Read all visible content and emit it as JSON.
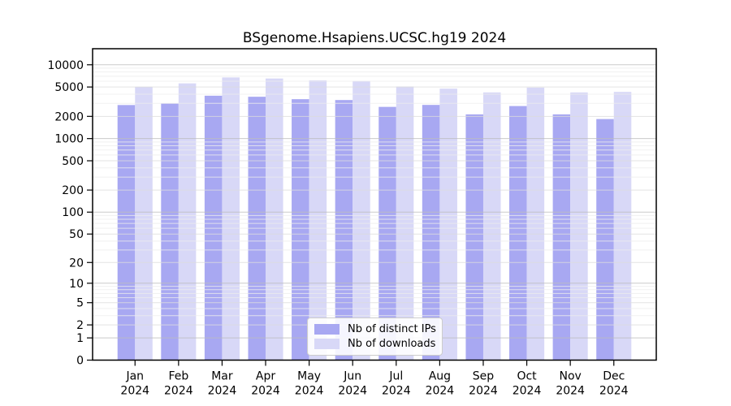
{
  "chart_data": {
    "type": "bar",
    "title": "BSgenome.Hsapiens.UCSC.hg19 2024",
    "categories": [
      "Jan",
      "Feb",
      "Mar",
      "Apr",
      "May",
      "Jun",
      "Jul",
      "Aug",
      "Sep",
      "Oct",
      "Nov",
      "Dec"
    ],
    "x_year_line": "2024",
    "series": [
      {
        "name": "Nb of distinct IPs",
        "color": "#a8a8f2",
        "values": [
          2850,
          2990,
          3810,
          3690,
          3420,
          3330,
          2690,
          2860,
          2130,
          2760,
          2130,
          1840
        ]
      },
      {
        "name": "Nb of downloads",
        "color": "#d8d8f7",
        "values": [
          5030,
          5600,
          6740,
          6520,
          6160,
          6010,
          5070,
          4750,
          4220,
          4910,
          4220,
          4290
        ]
      }
    ],
    "y_axis": {
      "scale": "log1p",
      "ticks": [
        0,
        1,
        2,
        5,
        10,
        20,
        50,
        100,
        200,
        500,
        1000,
        2000,
        5000,
        10000
      ],
      "range": [
        0,
        16500
      ]
    },
    "grid": true,
    "grid_colors": {
      "major": "#bdbdbd",
      "mid": "#dcdcdc",
      "minor": "#ececec"
    },
    "axis_color": "#000000",
    "legend_position": "bottom-center-inside"
  }
}
